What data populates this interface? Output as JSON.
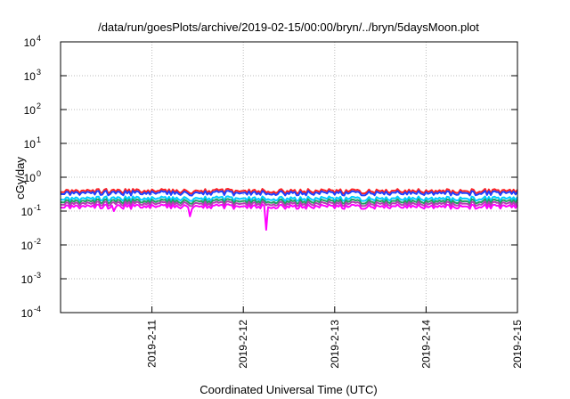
{
  "chart_data": {
    "type": "line",
    "title": "/data/run/goesPlots/archive/2019-02-15/00:00/bryn/../bryn/5daysMoon.plot",
    "xlabel": "Coordinated Universal Time (UTC)",
    "ylabel": "cGy/day",
    "yscale": "log",
    "ylim": [
      0.0001,
      10000
    ],
    "xlim": [
      "2019-02-10T00:00",
      "2019-02-15T00:00"
    ],
    "grid": true,
    "y_ticks": [
      {
        "base": "10",
        "exp": "-4",
        "value": 0.0001
      },
      {
        "base": "10",
        "exp": "-3",
        "value": 0.001
      },
      {
        "base": "10",
        "exp": "-2",
        "value": 0.01
      },
      {
        "base": "10",
        "exp": "-1",
        "value": 0.1
      },
      {
        "base": "10",
        "exp": "0",
        "value": 1
      },
      {
        "base": "10",
        "exp": "1",
        "value": 10
      },
      {
        "base": "10",
        "exp": "2",
        "value": 100
      },
      {
        "base": "10",
        "exp": "3",
        "value": 1000
      },
      {
        "base": "10",
        "exp": "4",
        "value": 10000
      }
    ],
    "x_ticks": [
      {
        "label": "2019-2-11",
        "value": "2019-02-11T00:00"
      },
      {
        "label": "2019-2-12",
        "value": "2019-02-12T00:00"
      },
      {
        "label": "2019-2-13",
        "value": "2019-02-13T00:00"
      },
      {
        "label": "2019-2-14",
        "value": "2019-02-14T00:00"
      },
      {
        "label": "2019-2-15",
        "value": "2019-02-15T00:00"
      }
    ],
    "series": [
      {
        "color": "#ff2020",
        "level": 0.4
      },
      {
        "color": "#2040ff",
        "level": 0.35
      },
      {
        "color": "#00ccff",
        "level": 0.24
      },
      {
        "color": "#20a060",
        "level": 0.2
      },
      {
        "color": "#b040b0",
        "level": 0.17
      },
      {
        "color": "#ff00ff",
        "level": 0.14,
        "dips": [
          {
            "x": "2019-02-10T14:00",
            "value": 0.1
          },
          {
            "x": "2019-02-11T10:00",
            "value": 0.07
          },
          {
            "x": "2019-02-12T06:00",
            "value": 0.028
          }
        ]
      }
    ]
  }
}
